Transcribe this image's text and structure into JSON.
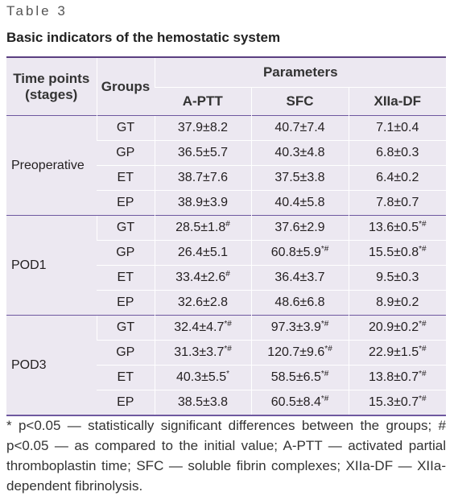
{
  "label": "Table 3",
  "title": "Basic indicators of the hemostatic system",
  "table": {
    "header": {
      "time_points": "Time points (stages)",
      "groups": "Groups",
      "parameters": "Parameters",
      "columns": [
        "A-PTT",
        "SFC",
        "XIIa-DF"
      ]
    },
    "blocks": [
      {
        "stage": "Preoperative",
        "rows": [
          {
            "group": "GT",
            "values": [
              "37.9±8.2",
              "40.7±7.4",
              "7.1±0.4"
            ]
          },
          {
            "group": "GP",
            "values": [
              "36.5±5.7",
              "40.3±4.8",
              "6.8±0.3"
            ]
          },
          {
            "group": "ET",
            "values": [
              "38.7±7.6",
              "37.5±3.8",
              "6.4±0.2"
            ]
          },
          {
            "group": "EP",
            "values": [
              "38.9±3.9",
              "40.4±5.8",
              "7.8±0.7"
            ]
          }
        ]
      },
      {
        "stage": "POD1",
        "rows": [
          {
            "group": "GT",
            "values": [
              "28.5±1.8#",
              "37.6±2.9",
              "13.6±0.5*#"
            ]
          },
          {
            "group": "GP",
            "values": [
              "26.4±5.1",
              "60.8±5.9*#",
              "15.5±0.8*#"
            ]
          },
          {
            "group": "ET",
            "values": [
              "33.4±2.6#",
              "36.4±3.7",
              "9.5±0.3"
            ]
          },
          {
            "group": "EP",
            "values": [
              "32.6±2.8",
              "48.6±6.8",
              "8.9±0.2"
            ]
          }
        ]
      },
      {
        "stage": "POD3",
        "rows": [
          {
            "group": "GT",
            "values": [
              "32.4±4.7*#",
              "97.3±3.9*#",
              "20.9±0.2*#"
            ]
          },
          {
            "group": "GP",
            "values": [
              "31.3±3.7*#",
              "120.7±9.6*#",
              "22.9±1.5*#"
            ]
          },
          {
            "group": "ET",
            "values": [
              "40.3±5.5*",
              "58.5±6.5*#",
              "13.8±0.7*#"
            ]
          },
          {
            "group": "EP",
            "values": [
              "38.5±3.8",
              "60.5±8.4*#",
              "15.3±0.7*#"
            ]
          }
        ]
      }
    ]
  },
  "footnote": "* p<0.05 — statistically significant differences between the groups; # p<0.05 — as compared to the initial value; A-PTT — activated partial thromboplastin time; SFC — soluble fibrin complexes; XIIa-DF — XIIa-dependent fibrinolysis."
}
